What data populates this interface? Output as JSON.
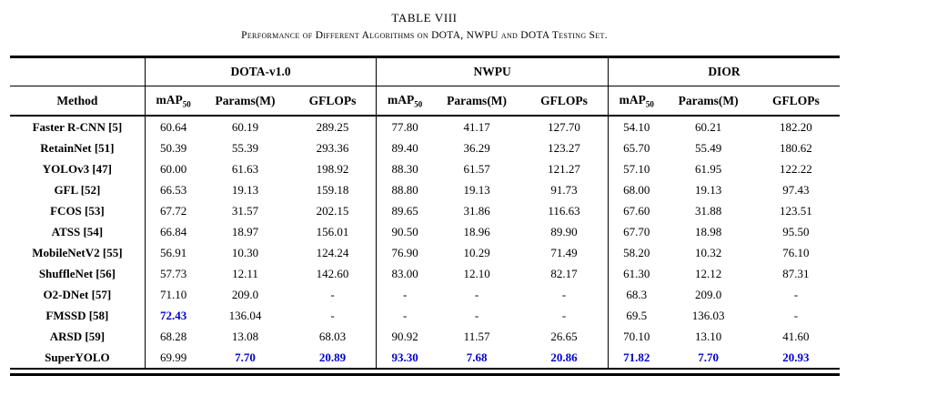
{
  "title": "TABLE VIII",
  "caption": "Performance of Different Algorithms on DOTA, NWPU and DOTA Testing Set.",
  "colors": {
    "highlight_blue": "#0000d0"
  },
  "table": {
    "method_header": "Method",
    "groups": [
      "DOTA-v1.0",
      "NWPU",
      "DIOR"
    ],
    "subheaders": {
      "map": "mAP",
      "map_sub": "50",
      "params": "Params(M)",
      "gflops": "GFLOPs"
    },
    "rows": [
      {
        "method": "Faster R-CNN [5]",
        "values": [
          "60.64",
          "60.19",
          "289.25",
          "77.80",
          "41.17",
          "127.70",
          "54.10",
          "60.21",
          "182.20"
        ],
        "highlight": []
      },
      {
        "method": "RetainNet [51]",
        "values": [
          "50.39",
          "55.39",
          "293.36",
          "89.40",
          "36.29",
          "123.27",
          "65.70",
          "55.49",
          "180.62"
        ],
        "highlight": []
      },
      {
        "method": "YOLOv3 [47]",
        "values": [
          "60.00",
          "61.63",
          "198.92",
          "88.30",
          "61.57",
          "121.27",
          "57.10",
          "61.95",
          "122.22"
        ],
        "highlight": []
      },
      {
        "method": "GFL [52]",
        "values": [
          "66.53",
          "19.13",
          "159.18",
          "88.80",
          "19.13",
          "91.73",
          "68.00",
          "19.13",
          "97.43"
        ],
        "highlight": []
      },
      {
        "method": "FCOS [53]",
        "values": [
          "67.72",
          "31.57",
          "202.15",
          "89.65",
          "31.86",
          "116.63",
          "67.60",
          "31.88",
          "123.51"
        ],
        "highlight": []
      },
      {
        "method": "ATSS [54]",
        "values": [
          "66.84",
          "18.97",
          "156.01",
          "90.50",
          "18.96",
          "89.90",
          "67.70",
          "18.98",
          "95.50"
        ],
        "highlight": []
      },
      {
        "method": "MobileNetV2 [55]",
        "values": [
          "56.91",
          "10.30",
          "124.24",
          "76.90",
          "10.29",
          "71.49",
          "58.20",
          "10.32",
          "76.10"
        ],
        "highlight": []
      },
      {
        "method": "ShuffleNet [56]",
        "values": [
          "57.73",
          "12.11",
          "142.60",
          "83.00",
          "12.10",
          "82.17",
          "61.30",
          "12.12",
          "87.31"
        ],
        "highlight": []
      },
      {
        "method": "O2-DNet [57]",
        "values": [
          "71.10",
          "209.0",
          "-",
          "-",
          "-",
          "-",
          "68.3",
          "209.0",
          "-"
        ],
        "highlight": []
      },
      {
        "method": "FMSSD [58]",
        "values": [
          "72.43",
          "136.04",
          "-",
          "-",
          "-",
          "-",
          "69.5",
          "136.03",
          "-"
        ],
        "highlight": [
          0
        ]
      },
      {
        "method": "ARSD [59]",
        "values": [
          "68.28",
          "13.08",
          "68.03",
          "90.92",
          "11.57",
          "26.65",
          "70.10",
          "13.10",
          "41.60"
        ],
        "highlight": []
      },
      {
        "method": "SuperYOLO",
        "values": [
          "69.99",
          "7.70",
          "20.89",
          "93.30",
          "7.68",
          "20.86",
          "71.82",
          "7.70",
          "20.93"
        ],
        "highlight": [
          1,
          2,
          3,
          4,
          5,
          6,
          7,
          8
        ]
      }
    ]
  }
}
